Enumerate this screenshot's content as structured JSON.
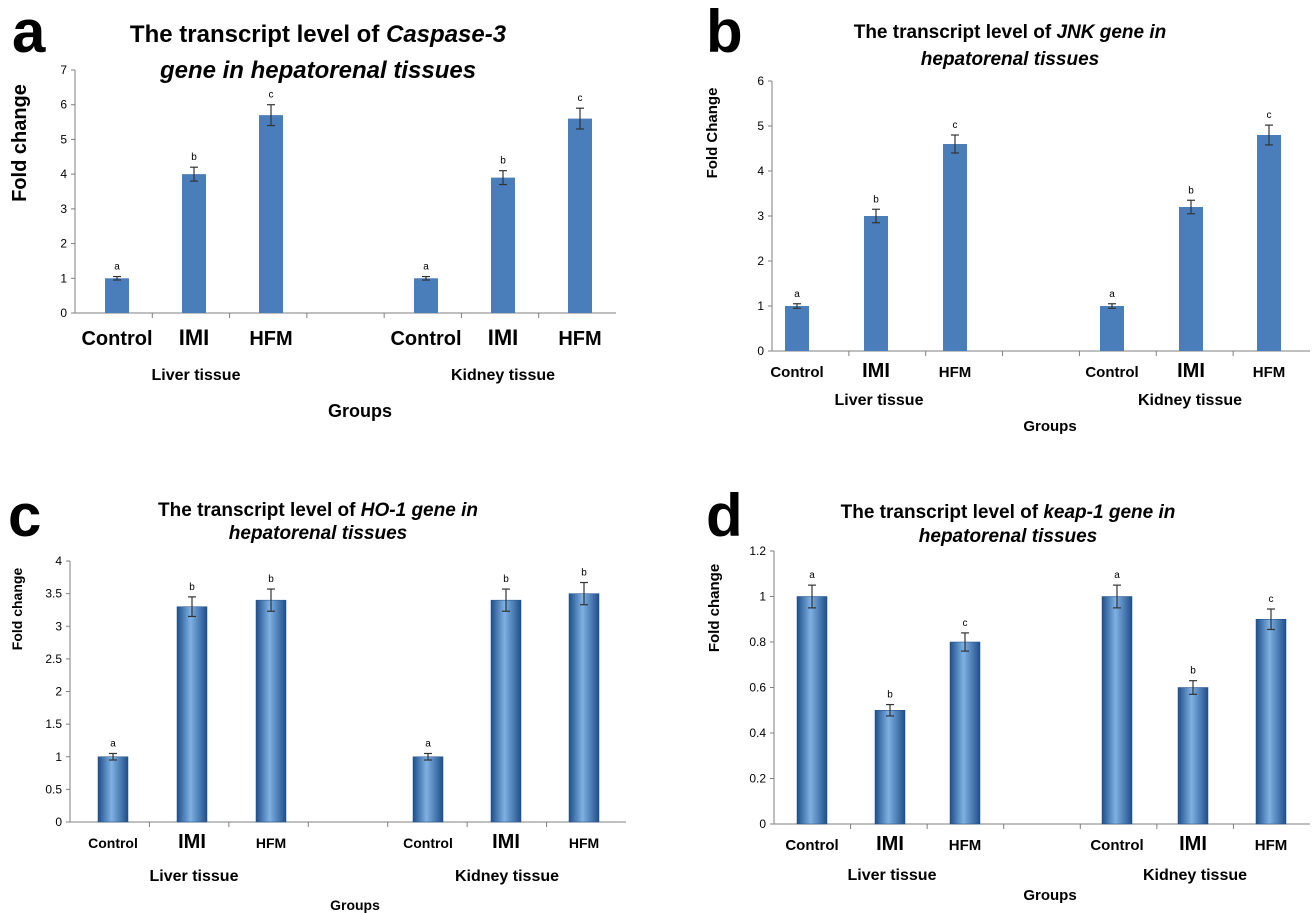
{
  "chart_data": [
    {
      "type": "bar",
      "panel": "a",
      "title_prefix": "The transcript level of ",
      "title_gene": "Caspase-3",
      "title_line2": "gene in hepatorenal tissues",
      "ylabel": "Fold change",
      "xlabel": "Groups",
      "ylim": [
        0,
        7
      ],
      "yticks": [
        "0",
        "1",
        "2",
        "3",
        "4",
        "5",
        "6",
        "7"
      ],
      "tick_values": [
        0,
        1,
        2,
        3,
        4,
        5,
        6,
        7
      ],
      "categories": [
        "Control",
        "IMI",
        "HFM",
        "Control",
        "IMI",
        "HFM"
      ],
      "groups": [
        "Liver tissue",
        "Kidney tissue"
      ],
      "values": [
        1.0,
        4.0,
        5.7,
        1.0,
        3.9,
        5.6
      ],
      "errors": [
        0.05,
        0.2,
        0.3,
        0.05,
        0.2,
        0.3
      ],
      "significance": [
        "a",
        "b",
        "c",
        "a",
        "b",
        "c"
      ],
      "grid": false,
      "bar_style": "flat"
    },
    {
      "type": "bar",
      "panel": "b",
      "title_prefix": "The transcript level of ",
      "title_gene": "JNK gene in",
      "title_line2": "hepatorenal tissues",
      "ylabel": "Fold Change",
      "xlabel": "Groups",
      "ylim": [
        0,
        6
      ],
      "yticks": [
        "0",
        "1",
        "2",
        "3",
        "4",
        "5",
        "6"
      ],
      "tick_values": [
        0,
        1,
        2,
        3,
        4,
        5,
        6
      ],
      "categories": [
        "Control",
        "IMI",
        "HFM",
        "Control",
        "IMI",
        "HFM"
      ],
      "groups": [
        "Liver tissue",
        "Kidney tissue"
      ],
      "values": [
        1.0,
        3.0,
        4.6,
        1.0,
        3.2,
        4.8
      ],
      "errors": [
        0.05,
        0.15,
        0.2,
        0.05,
        0.15,
        0.22
      ],
      "significance": [
        "a",
        "b",
        "c",
        "a",
        "b",
        "c"
      ],
      "grid": false,
      "bar_style": "flat"
    },
    {
      "type": "bar",
      "panel": "c",
      "title_prefix": "The transcript level of ",
      "title_gene": "HO-1 gene in",
      "title_line2": "hepatorenal tissues",
      "ylabel": "Fold change",
      "xlabel": "Groups",
      "ylim": [
        0,
        4
      ],
      "yticks": [
        "0",
        "0.5",
        "1",
        "1.5",
        "2",
        "2.5",
        "3",
        "3.5",
        "4"
      ],
      "tick_values": [
        0,
        0.5,
        1,
        1.5,
        2,
        2.5,
        3,
        3.5,
        4
      ],
      "categories": [
        "Control",
        "IMI",
        "HFM",
        "Control",
        "IMI",
        "HFM"
      ],
      "groups": [
        "Liver tissue",
        "Kidney tissue"
      ],
      "values": [
        1.0,
        3.3,
        3.4,
        1.0,
        3.4,
        3.5
      ],
      "errors": [
        0.05,
        0.15,
        0.17,
        0.05,
        0.17,
        0.17
      ],
      "significance": [
        "a",
        "b",
        "b",
        "a",
        "b",
        "b"
      ],
      "grid": false,
      "bar_style": "cylinder"
    },
    {
      "type": "bar",
      "panel": "d",
      "title_prefix": "The transcript level of ",
      "title_gene": "keap-1 gene in",
      "title_line2": "hepatorenal tissues",
      "ylabel": "Fold change",
      "xlabel": "Groups",
      "ylim": [
        0,
        1.2
      ],
      "yticks": [
        "0",
        "0.2",
        "0.4",
        "0.6",
        "0.8",
        "1",
        "1.2"
      ],
      "tick_values": [
        0,
        0.2,
        0.4,
        0.6,
        0.8,
        1.0,
        1.2
      ],
      "categories": [
        "Control",
        "IMI",
        "HFM",
        "Control",
        "IMI",
        "HFM"
      ],
      "groups": [
        "Liver tissue",
        "Kidney tissue"
      ],
      "values": [
        1.0,
        0.5,
        0.8,
        1.0,
        0.6,
        0.9
      ],
      "errors": [
        0.05,
        0.025,
        0.04,
        0.05,
        0.03,
        0.045
      ],
      "significance": [
        "a",
        "b",
        "c",
        "a",
        "b",
        "c"
      ],
      "grid": false,
      "bar_style": "cylinder"
    }
  ],
  "colors": {
    "bar": "#4a7ebb",
    "bar_light": "#7fb1e3",
    "bar_dark": "#1f4f8a",
    "axis": "#7f7f7f",
    "text": "#000000"
  }
}
